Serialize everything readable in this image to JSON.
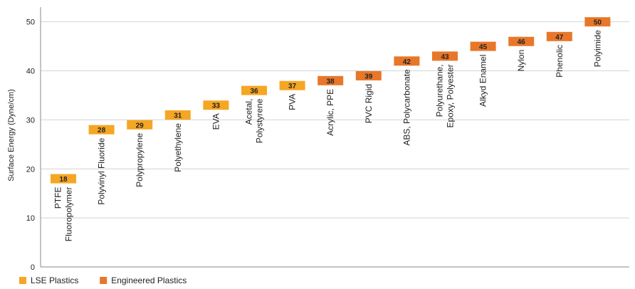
{
  "chart_data": {
    "type": "bar",
    "ylabel": "Surface Energy (Dyne/cm)",
    "ylim": [
      0,
      53
    ],
    "yticks": [
      0,
      10,
      20,
      30,
      40,
      50
    ],
    "grid": true,
    "legend_position": "bottom-left",
    "legend": [
      {
        "name": "LSE Plastics",
        "color": "#F5A623"
      },
      {
        "name": "Engineered Plastics",
        "color": "#E8772A"
      }
    ],
    "categories": [
      [
        "PTFE",
        "Fluoropolymer"
      ],
      [
        "Polyvinyl Fluoride"
      ],
      [
        "Polypropylene"
      ],
      [
        "Polyethylene"
      ],
      [
        "EVA"
      ],
      [
        "Acetal,",
        "Polystyrene"
      ],
      [
        "PVA"
      ],
      [
        "Acrylic, PPE"
      ],
      [
        "PVC Rigid"
      ],
      [
        "ABS, Polycarbonate"
      ],
      [
        "Polyurethane,",
        "Epoxy, Polyester"
      ],
      [
        "Alkyd Enamel"
      ],
      [
        "Nylon"
      ],
      [
        "Phenolic"
      ],
      [
        "Polyimide"
      ]
    ],
    "values": [
      18,
      28,
      29,
      31,
      33,
      36,
      37,
      38,
      39,
      42,
      43,
      45,
      46,
      47,
      50
    ],
    "value_labels": [
      "18",
      "28",
      "29",
      "31",
      "33",
      "36",
      "37",
      "38",
      "39",
      "42",
      "43",
      "45",
      "46",
      "47",
      "50"
    ],
    "groups": [
      "LSE Plastics",
      "LSE Plastics",
      "LSE Plastics",
      "LSE Plastics",
      "LSE Plastics",
      "LSE Plastics",
      "LSE Plastics",
      "Engineered Plastics",
      "Engineered Plastics",
      "Engineered Plastics",
      "Engineered Plastics",
      "Engineered Plastics",
      "Engineered Plastics",
      "Engineered Plastics",
      "Engineered Plastics"
    ]
  }
}
